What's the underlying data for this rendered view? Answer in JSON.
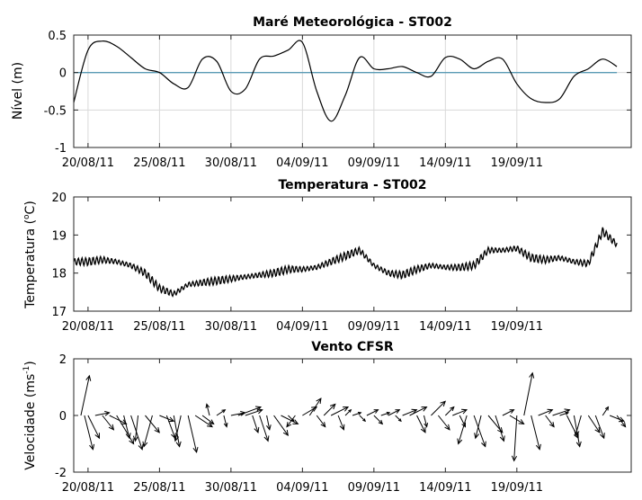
{
  "chart_data": [
    {
      "type": "line",
      "title": "Maré Meteorológica - ST002",
      "ylabel": "Nível (m)",
      "xlabel": "",
      "x_range": [
        "2011-08-19",
        "2011-09-27"
      ],
      "ylim": [
        -1,
        0.5
      ],
      "yticks": [
        -1,
        -0.5,
        0,
        0.5
      ],
      "ytick_labels": [
        "-1",
        "-0.5",
        "0",
        "0.5"
      ],
      "xticks": [
        "2011-08-20",
        "2011-08-25",
        "2011-08-30",
        "2011-09-04",
        "2011-09-09",
        "2011-09-14",
        "2011-09-19"
      ],
      "xtick_labels": [
        "20/08/11",
        "25/08/11",
        "30/08/11",
        "04/09/11",
        "09/09/11",
        "14/09/11",
        "19/09/11"
      ],
      "grid": true,
      "reference_line": {
        "y": 0,
        "color": "#5b9bb5",
        "x_start": "2011-08-19",
        "x_end": "2011-09-26"
      },
      "line_color": "#000000",
      "series": [
        {
          "x": [
            "2011-08-19",
            "2011-08-20",
            "2011-08-21",
            "2011-08-22",
            "2011-08-23",
            "2011-08-24",
            "2011-08-25",
            "2011-08-26",
            "2011-08-27",
            "2011-08-28",
            "2011-08-29",
            "2011-08-30",
            "2011-08-31",
            "2011-09-01",
            "2011-09-02",
            "2011-09-03",
            "2011-09-04",
            "2011-09-05",
            "2011-09-06",
            "2011-09-07",
            "2011-09-08",
            "2011-09-09",
            "2011-09-10",
            "2011-09-11",
            "2011-09-12",
            "2011-09-13",
            "2011-09-14",
            "2011-09-15",
            "2011-09-16",
            "2011-09-17",
            "2011-09-18",
            "2011-09-19",
            "2011-09-20",
            "2011-09-21",
            "2011-09-22",
            "2011-09-23",
            "2011-09-24",
            "2011-09-25",
            "2011-09-26"
          ],
          "y": [
            -0.4,
            0.3,
            0.42,
            0.35,
            0.2,
            0.05,
            0.0,
            -0.15,
            -0.2,
            0.18,
            0.15,
            -0.25,
            -0.22,
            0.18,
            0.22,
            0.3,
            0.4,
            -0.25,
            -0.65,
            -0.3,
            0.2,
            0.05,
            0.05,
            0.08,
            0.0,
            -0.05,
            0.2,
            0.18,
            0.05,
            0.15,
            0.18,
            -0.15,
            -0.35,
            -0.4,
            -0.35,
            -0.05,
            0.05,
            0.18,
            0.08
          ]
        }
      ]
    },
    {
      "type": "line",
      "title": "Temperatura - ST002",
      "ylabel": "Temperatura (oC)",
      "ylabel_parts": {
        "before": "Temperatura (",
        "sup": "o",
        "after": "C)"
      },
      "xlabel": "",
      "x_range": [
        "2011-08-19",
        "2011-09-27"
      ],
      "ylim": [
        17,
        20
      ],
      "yticks": [
        17,
        18,
        19,
        20
      ],
      "ytick_labels": [
        "17",
        "18",
        "19",
        "20"
      ],
      "xticks": [
        "2011-08-20",
        "2011-08-25",
        "2011-08-30",
        "2011-09-04",
        "2011-09-09",
        "2011-09-14",
        "2011-09-19"
      ],
      "xtick_labels": [
        "20/08/11",
        "25/08/11",
        "30/08/11",
        "04/09/11",
        "09/09/11",
        "14/09/11",
        "19/09/11"
      ],
      "grid": false,
      "line_color": "#000000",
      "band_half_width": 0.08,
      "series": [
        {
          "x": [
            "2011-08-19",
            "2011-08-20",
            "2011-08-21",
            "2011-08-22",
            "2011-08-23",
            "2011-08-24",
            "2011-08-25",
            "2011-08-26",
            "2011-08-27",
            "2011-08-28",
            "2011-08-29",
            "2011-08-30",
            "2011-08-31",
            "2011-09-01",
            "2011-09-02",
            "2011-09-03",
            "2011-09-04",
            "2011-09-05",
            "2011-09-06",
            "2011-09-07",
            "2011-09-08",
            "2011-09-09",
            "2011-09-10",
            "2011-09-11",
            "2011-09-12",
            "2011-09-13",
            "2011-09-14",
            "2011-09-15",
            "2011-09-16",
            "2011-09-17",
            "2011-09-18",
            "2011-09-19",
            "2011-09-20",
            "2011-09-21",
            "2011-09-22",
            "2011-09-23",
            "2011-09-24",
            "2011-09-25",
            "2011-09-26"
          ],
          "y": [
            18.3,
            18.3,
            18.35,
            18.3,
            18.2,
            18.0,
            17.6,
            17.45,
            17.7,
            17.75,
            17.8,
            17.85,
            17.9,
            17.95,
            18.0,
            18.1,
            18.1,
            18.15,
            18.3,
            18.45,
            18.6,
            18.2,
            18.0,
            17.95,
            18.1,
            18.2,
            18.15,
            18.15,
            18.2,
            18.6,
            18.6,
            18.65,
            18.4,
            18.35,
            18.4,
            18.3,
            18.25,
            19.1,
            18.75
          ]
        }
      ]
    },
    {
      "type": "quiver",
      "title": "Vento CFSR",
      "ylabel": "Velocidade (ms-1)",
      "ylabel_parts": {
        "before": "Velocidade (ms",
        "sup": "-1",
        "after": ")"
      },
      "xlabel": "",
      "x_range": [
        "2011-08-19",
        "2011-09-27"
      ],
      "ylim": [
        -2,
        2
      ],
      "yticks": [
        -2,
        0,
        2
      ],
      "ytick_labels": [
        "-2",
        "0",
        "2"
      ],
      "xticks": [
        "2011-08-20",
        "2011-08-25",
        "2011-08-30",
        "2011-09-04",
        "2011-09-09",
        "2011-09-14",
        "2011-09-19"
      ],
      "xtick_labels": [
        "20/08/11",
        "25/08/11",
        "30/08/11",
        "04/09/11",
        "09/09/11",
        "14/09/11",
        "19/09/11"
      ],
      "grid": false,
      "arrow_color": "#000000",
      "arrows": [
        {
          "t": "2011-08-19T12:00",
          "u": 0.3,
          "v": 1.4
        },
        {
          "t": "2011-08-19T18:00",
          "u": 0.3,
          "v": -1.2
        },
        {
          "t": "2011-08-20T00:00",
          "u": 0.4,
          "v": -0.8
        },
        {
          "t": "2011-08-20T12:00",
          "u": 0.5,
          "v": 0.1
        },
        {
          "t": "2011-08-21T00:00",
          "u": 0.4,
          "v": -0.5
        },
        {
          "t": "2011-08-21T12:00",
          "u": 0.6,
          "v": -0.3
        },
        {
          "t": "2011-08-22T00:00",
          "u": 0.6,
          "v": -1.0
        },
        {
          "t": "2011-08-22T12:00",
          "u": 0.2,
          "v": -0.8
        },
        {
          "t": "2011-08-23T00:00",
          "u": 0.4,
          "v": -1.2
        },
        {
          "t": "2011-08-23T12:00",
          "u": -0.1,
          "v": -0.9
        },
        {
          "t": "2011-08-24T00:00",
          "u": 0.5,
          "v": -0.6
        },
        {
          "t": "2011-08-24T12:00",
          "u": -0.3,
          "v": -1.1
        },
        {
          "t": "2011-08-25T00:00",
          "u": 0.5,
          "v": -0.2
        },
        {
          "t": "2011-08-25T12:00",
          "u": 0.3,
          "v": -0.8
        },
        {
          "t": "2011-08-26T00:00",
          "u": 0.2,
          "v": -1.1
        },
        {
          "t": "2011-08-26T12:00",
          "u": -0.2,
          "v": -0.9
        },
        {
          "t": "2011-08-27T00:00",
          "u": 0.3,
          "v": -1.3
        },
        {
          "t": "2011-08-27T12:00",
          "u": 0.6,
          "v": -0.4
        },
        {
          "t": "2011-08-28T00:00",
          "u": 0.4,
          "v": -0.3
        },
        {
          "t": "2011-08-28T12:00",
          "u": -0.1,
          "v": 0.4
        },
        {
          "t": "2011-08-29T00:00",
          "u": 0.3,
          "v": 0.2
        },
        {
          "t": "2011-08-29T12:00",
          "u": 0.1,
          "v": -0.4
        },
        {
          "t": "2011-08-30T00:00",
          "u": 0.5,
          "v": 0.1
        },
        {
          "t": "2011-08-30T12:00",
          "u": 0.8,
          "v": 0.3
        },
        {
          "t": "2011-08-31T00:00",
          "u": 0.6,
          "v": 0.2
        },
        {
          "t": "2011-08-31T12:00",
          "u": 0.2,
          "v": -0.6
        },
        {
          "t": "2011-09-01T00:00",
          "u": 0.3,
          "v": -0.9
        },
        {
          "t": "2011-09-01T12:00",
          "u": 0.1,
          "v": -0.5
        },
        {
          "t": "2011-09-02T00:00",
          "u": 0.5,
          "v": -0.7
        },
        {
          "t": "2011-09-02T12:00",
          "u": 0.6,
          "v": -0.3
        },
        {
          "t": "2011-09-03T00:00",
          "u": 0.2,
          "v": -0.2
        },
        {
          "t": "2011-09-03T12:00",
          "u": -0.3,
          "v": -0.4
        },
        {
          "t": "2011-09-04T00:00",
          "u": 0.5,
          "v": 0.3
        },
        {
          "t": "2011-09-04T12:00",
          "u": 0.4,
          "v": 0.6
        },
        {
          "t": "2011-09-05T00:00",
          "u": 0.3,
          "v": -0.4
        },
        {
          "t": "2011-09-05T12:00",
          "u": 0.4,
          "v": 0.4
        },
        {
          "t": "2011-09-06T00:00",
          "u": 0.6,
          "v": 0.3
        },
        {
          "t": "2011-09-06T12:00",
          "u": 0.2,
          "v": -0.5
        },
        {
          "t": "2011-09-07T00:00",
          "u": 0.2,
          "v": 0.2
        },
        {
          "t": "2011-09-07T12:00",
          "u": 0.3,
          "v": 0.1
        },
        {
          "t": "2011-09-08T00:00",
          "u": 0.2,
          "v": -0.2
        },
        {
          "t": "2011-09-08T12:00",
          "u": 0.4,
          "v": 0.2
        },
        {
          "t": "2011-09-09T00:00",
          "u": 0.3,
          "v": -0.3
        },
        {
          "t": "2011-09-09T12:00",
          "u": 0.3,
          "v": 0.1
        },
        {
          "t": "2011-09-10T00:00",
          "u": 0.4,
          "v": 0.2
        },
        {
          "t": "2011-09-10T12:00",
          "u": 0.2,
          "v": -0.2
        },
        {
          "t": "2011-09-11T00:00",
          "u": 0.5,
          "v": 0.2
        },
        {
          "t": "2011-09-11T12:00",
          "u": 0.6,
          "v": 0.3
        },
        {
          "t": "2011-09-12T00:00",
          "u": 0.3,
          "v": -0.6
        },
        {
          "t": "2011-09-12T12:00",
          "u": 0.1,
          "v": -0.4
        },
        {
          "t": "2011-09-13T00:00",
          "u": 0.5,
          "v": 0.5
        },
        {
          "t": "2011-09-13T12:00",
          "u": 0.4,
          "v": -0.5
        },
        {
          "t": "2011-09-14T00:00",
          "u": 0.3,
          "v": 0.3
        },
        {
          "t": "2011-09-14T12:00",
          "u": 0.5,
          "v": 0.2
        },
        {
          "t": "2011-09-15T00:00",
          "u": 0.2,
          "v": -0.4
        },
        {
          "t": "2011-09-15T12:00",
          "u": -0.3,
          "v": -1.0
        },
        {
          "t": "2011-09-16T00:00",
          "u": 0.4,
          "v": -1.1
        },
        {
          "t": "2011-09-16T12:00",
          "u": -0.2,
          "v": -0.8
        },
        {
          "t": "2011-09-17T00:00",
          "u": 0.5,
          "v": -0.6
        },
        {
          "t": "2011-09-17T12:00",
          "u": 0.3,
          "v": -0.9
        },
        {
          "t": "2011-09-18T00:00",
          "u": 0.4,
          "v": 0.2
        },
        {
          "t": "2011-09-18T12:00",
          "u": 0.5,
          "v": -0.3
        },
        {
          "t": "2011-09-19T00:00",
          "u": -0.1,
          "v": -1.6
        },
        {
          "t": "2011-09-19T12:00",
          "u": 0.3,
          "v": 1.5
        },
        {
          "t": "2011-09-20T00:00",
          "u": 0.3,
          "v": -1.2
        },
        {
          "t": "2011-09-20T12:00",
          "u": 0.5,
          "v": 0.2
        },
        {
          "t": "2011-09-21T00:00",
          "u": 0.3,
          "v": -0.4
        },
        {
          "t": "2011-09-21T12:00",
          "u": 0.6,
          "v": 0.2
        },
        {
          "t": "2011-09-22T00:00",
          "u": 0.3,
          "v": 0.1
        },
        {
          "t": "2011-09-22T12:00",
          "u": 0.4,
          "v": -0.8
        },
        {
          "t": "2011-09-23T00:00",
          "u": 0.2,
          "v": -1.1
        },
        {
          "t": "2011-09-23T12:00",
          "u": -0.2,
          "v": -0.7
        },
        {
          "t": "2011-09-24T00:00",
          "u": 0.4,
          "v": -0.6
        },
        {
          "t": "2011-09-24T12:00",
          "u": 0.3,
          "v": -0.8
        },
        {
          "t": "2011-09-25T00:00",
          "u": 0.2,
          "v": 0.3
        },
        {
          "t": "2011-09-25T12:00",
          "u": 0.5,
          "v": -0.2
        },
        {
          "t": "2011-09-26T00:00",
          "u": 0.3,
          "v": -0.4
        }
      ]
    }
  ]
}
